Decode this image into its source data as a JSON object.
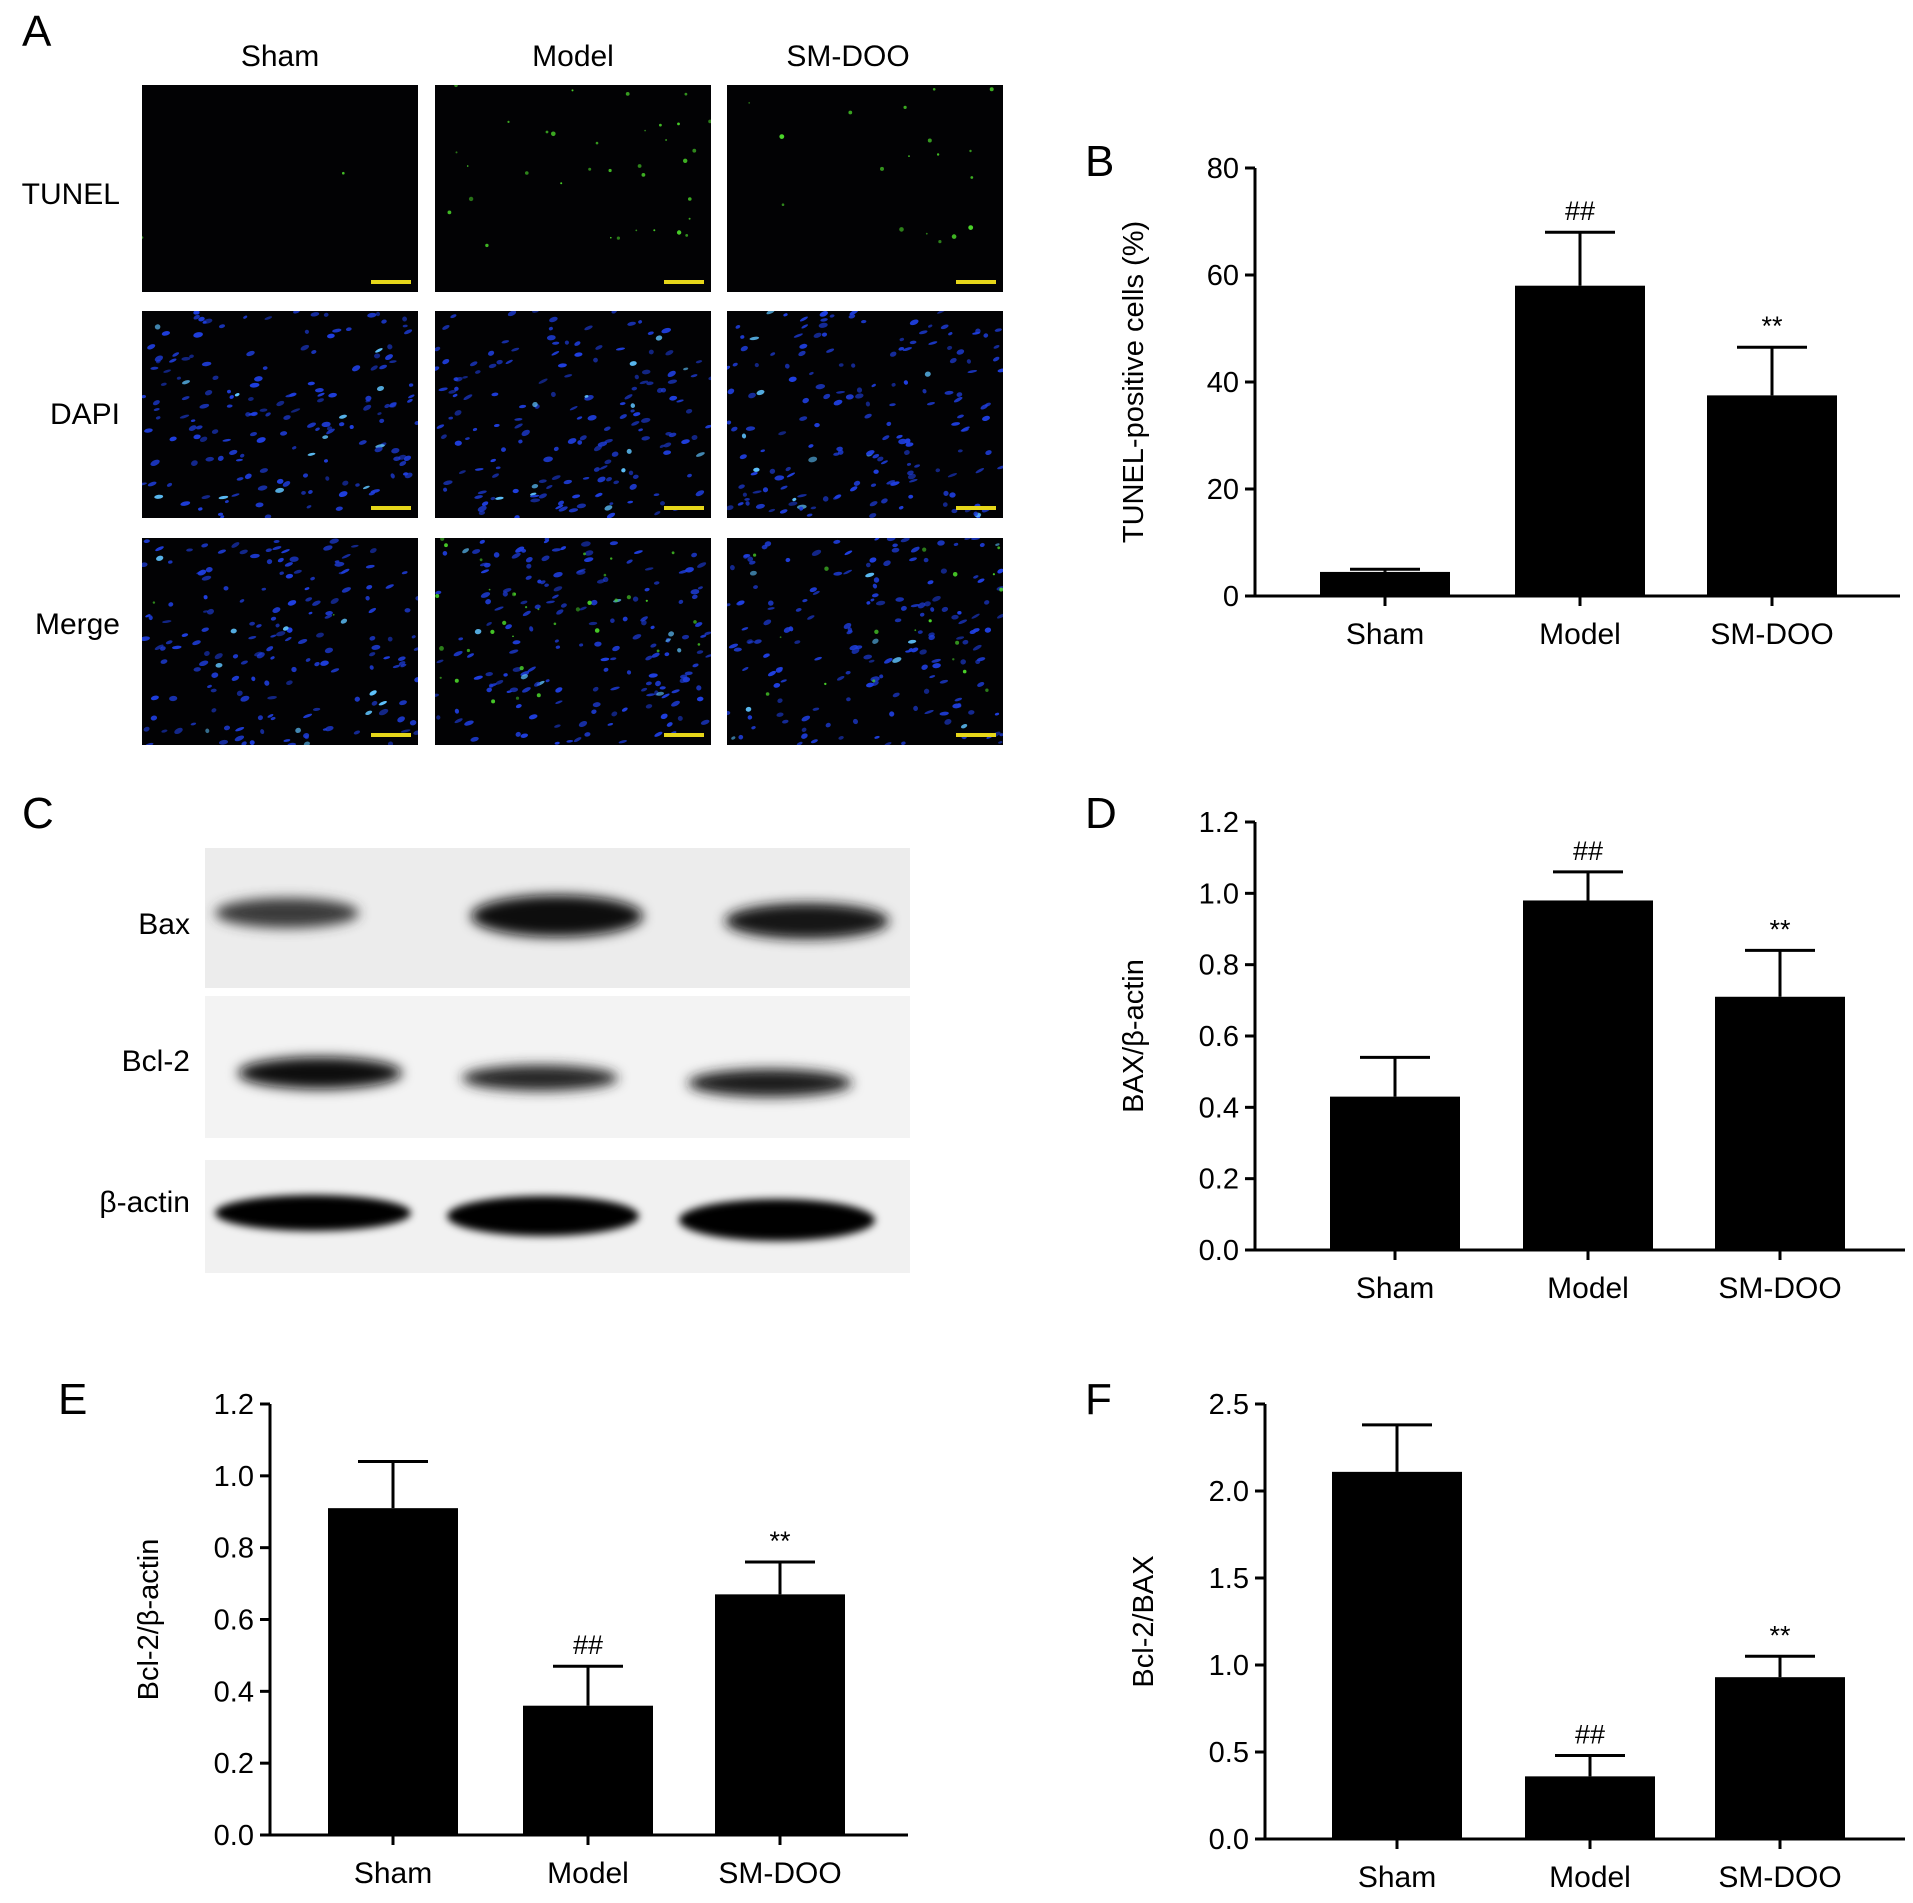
{
  "panel_labels": {
    "a": "A",
    "b": "B",
    "c": "C",
    "d": "D",
    "e": "E",
    "f": "F"
  },
  "micrographs": {
    "columns": [
      "Sham",
      "Model",
      "SM-DOO"
    ],
    "rows": [
      "TUNEL",
      "DAPI",
      "Merge"
    ]
  },
  "western_blot": {
    "bands": [
      "Bax",
      "Bcl-2",
      "β-actin"
    ]
  },
  "colors": {
    "bar": "#000000",
    "scale_bar": "#e6d619",
    "dapi": "#1f3fe0",
    "tunel": "#4bd62a"
  },
  "chart_data": [
    {
      "id": "B",
      "type": "bar",
      "categories": [
        "Sham",
        "Model",
        "SM-DOO"
      ],
      "values": [
        4.5,
        58,
        37.5
      ],
      "errors": [
        0.5,
        10,
        9
      ],
      "annotations": [
        "",
        "##",
        "**"
      ],
      "ylabel": "TUNEL-positive cells (%)",
      "ylim": [
        0,
        80
      ],
      "yticks": [
        "0",
        "20",
        "40",
        "60",
        "80"
      ]
    },
    {
      "id": "D",
      "type": "bar",
      "categories": [
        "Sham",
        "Model",
        "SM-DOO"
      ],
      "values": [
        0.43,
        0.98,
        0.71
      ],
      "errors": [
        0.11,
        0.08,
        0.13
      ],
      "annotations": [
        "",
        "##",
        "**"
      ],
      "ylabel": "BAX/β-actin",
      "ylim": [
        0,
        1.2
      ],
      "yticks": [
        "0.0",
        "0.2",
        "0.4",
        "0.6",
        "0.8",
        "1.0",
        "1.2"
      ]
    },
    {
      "id": "E",
      "type": "bar",
      "categories": [
        "Sham",
        "Model",
        "SM-DOO"
      ],
      "values": [
        0.91,
        0.36,
        0.67
      ],
      "errors": [
        0.13,
        0.11,
        0.09
      ],
      "annotations": [
        "",
        "##",
        "**"
      ],
      "ylabel": "Bcl-2/β-actin",
      "ylim": [
        0,
        1.2
      ],
      "yticks": [
        "0.0",
        "0.2",
        "0.4",
        "0.6",
        "0.8",
        "1.0",
        "1.2"
      ]
    },
    {
      "id": "F",
      "type": "bar",
      "categories": [
        "Sham",
        "Model",
        "SM-DOO"
      ],
      "values": [
        2.11,
        0.36,
        0.93
      ],
      "errors": [
        0.27,
        0.12,
        0.12
      ],
      "annotations": [
        "",
        "##",
        "**"
      ],
      "ylabel": "Bcl-2/BAX",
      "ylim": [
        0,
        2.5
      ],
      "yticks": [
        "0.0",
        "0.5",
        "1.0",
        "1.5",
        "2.0",
        "2.5"
      ]
    }
  ]
}
